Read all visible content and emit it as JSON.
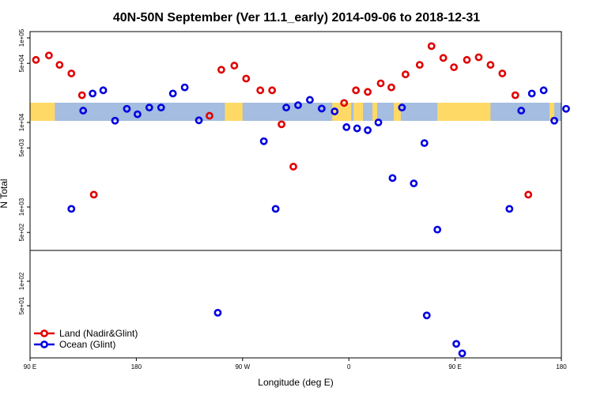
{
  "chart_data": {
    "type": "scatter",
    "title": "40N-50N September (Ver 11.1_early)   2014-09-06 to 2018-12-31",
    "xlabel": "Longitude (deg E)",
    "ylabel": "N Total",
    "y_scale": "log",
    "x_ticks": [
      {
        "value": 90,
        "label": "90 E"
      },
      {
        "value": 180,
        "label": "180"
      },
      {
        "value": 270,
        "label": "90 W"
      },
      {
        "value": 360,
        "label": "0"
      },
      {
        "value": 450,
        "label": "90 E"
      },
      {
        "value": 540,
        "label": "180"
      }
    ],
    "y_ticks_upper": [
      {
        "value": 100000,
        "label": "1e+05"
      },
      {
        "value": 50000,
        "label": "5e+04"
      },
      {
        "value": 10000,
        "label": "1e+04"
      },
      {
        "value": 5000,
        "label": "5e+03"
      },
      {
        "value": 1000,
        "label": "1e+03"
      },
      {
        "value": 500,
        "label": "5e+02"
      }
    ],
    "y_ticks_lower": [
      {
        "value": 100,
        "label": "1e+02"
      },
      {
        "value": 50,
        "label": "5e+01"
      }
    ],
    "legend": {
      "position": "bottom-left",
      "entries": [
        {
          "label": "Land (Nadir&Glint)",
          "color": "#e00000"
        },
        {
          "label": "Ocean (Glint)",
          "color": "#0000e0"
        }
      ]
    },
    "map_strip": {
      "land_color": "#ffd966",
      "ocean_color": "#a4bde0"
    },
    "series": [
      {
        "name": "Land (Nadir&Glint)",
        "color": "#e00000",
        "points": [
          [
            95,
            55000
          ],
          [
            106,
            62000
          ],
          [
            115,
            48000
          ],
          [
            125,
            38000
          ],
          [
            134,
            21000
          ],
          [
            144,
            1400
          ],
          [
            242,
            12000
          ],
          [
            252,
            42000
          ],
          [
            263,
            47000
          ],
          [
            273,
            33000
          ],
          [
            285,
            24000
          ],
          [
            295,
            24000
          ],
          [
            303,
            9500
          ],
          [
            313,
            3000
          ],
          [
            356,
            17000
          ],
          [
            366,
            24000
          ],
          [
            376,
            23000
          ],
          [
            387,
            29000
          ],
          [
            396,
            26000
          ],
          [
            408,
            37000
          ],
          [
            420,
            48000
          ],
          [
            430,
            80000
          ],
          [
            440,
            58000
          ],
          [
            449,
            45000
          ],
          [
            460,
            55000
          ],
          [
            470,
            59000
          ],
          [
            480,
            48000
          ],
          [
            490,
            38000
          ],
          [
            501,
            21000
          ],
          [
            512,
            1400
          ]
        ]
      },
      {
        "name": "Ocean (Glint)",
        "color": "#0000e0",
        "points": [
          [
            125,
            950
          ],
          [
            135,
            13800
          ],
          [
            143,
            22000
          ],
          [
            152,
            24000
          ],
          [
            162,
            10500
          ],
          [
            172,
            14500
          ],
          [
            181,
            12500
          ],
          [
            191,
            15000
          ],
          [
            201,
            15000
          ],
          [
            211,
            22000
          ],
          [
            221,
            26000
          ],
          [
            233,
            10600
          ],
          [
            288,
            6000
          ],
          [
            298,
            950
          ],
          [
            307,
            15000
          ],
          [
            317,
            16000
          ],
          [
            327,
            18500
          ],
          [
            337,
            14600
          ],
          [
            348,
            13500
          ],
          [
            358,
            8800
          ],
          [
            367,
            8500
          ],
          [
            376,
            8100
          ],
          [
            385,
            10000
          ],
          [
            397,
            2200
          ],
          [
            405,
            15000
          ],
          [
            415,
            1900
          ],
          [
            424,
            5700
          ],
          [
            435,
            540
          ],
          [
            496,
            950
          ],
          [
            506,
            13800
          ],
          [
            515,
            22000
          ],
          [
            525,
            24000
          ],
          [
            534,
            10500
          ],
          [
            544,
            14500
          ]
        ]
      }
    ],
    "lower_points": [
      {
        "series": "Ocean (Glint)",
        "x": 249,
        "y": 41
      },
      {
        "series": "Ocean (Glint)",
        "x": 426,
        "y": 38
      },
      {
        "series": "Ocean (Glint)",
        "x": 451,
        "y": 17
      },
      {
        "series": "Ocean (Glint)",
        "x": 456,
        "y": 13
      }
    ]
  }
}
